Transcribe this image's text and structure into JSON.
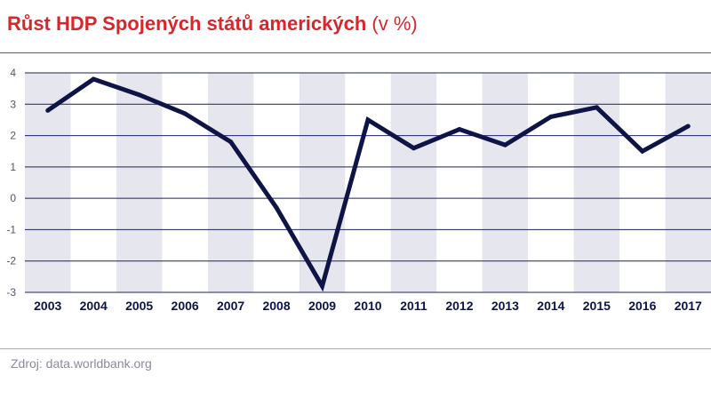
{
  "header": {
    "title": "Růst HDP Spojených států amerických",
    "unit": "(v %)"
  },
  "footer": {
    "source": "Zdroj: data.worldbank.org"
  },
  "colors": {
    "title": "#d7272b",
    "line": "#0e1446",
    "band": "#e6e6ee",
    "grid": "#1d2260"
  },
  "chart_data": {
    "type": "line",
    "title": "Růst HDP Spojených států amerických (v %)",
    "xlabel": "",
    "ylabel": "",
    "categories": [
      "2003",
      "2004",
      "2005",
      "2006",
      "2007",
      "2008",
      "2009",
      "2010",
      "2011",
      "2012",
      "2013",
      "2014",
      "2015",
      "2016",
      "2017"
    ],
    "series": [
      {
        "values": [
          2.8,
          3.8,
          3.3,
          2.7,
          1.8,
          -0.3,
          -2.8,
          2.5,
          1.6,
          2.2,
          1.7,
          2.6,
          2.9,
          1.5,
          2.3
        ]
      }
    ],
    "y_ticks": [
      4,
      3,
      2,
      1,
      0,
      -1,
      -2,
      -3
    ],
    "ylim": [
      -3,
      4
    ],
    "grid": true,
    "alternating_bands": true,
    "legend": "none"
  }
}
